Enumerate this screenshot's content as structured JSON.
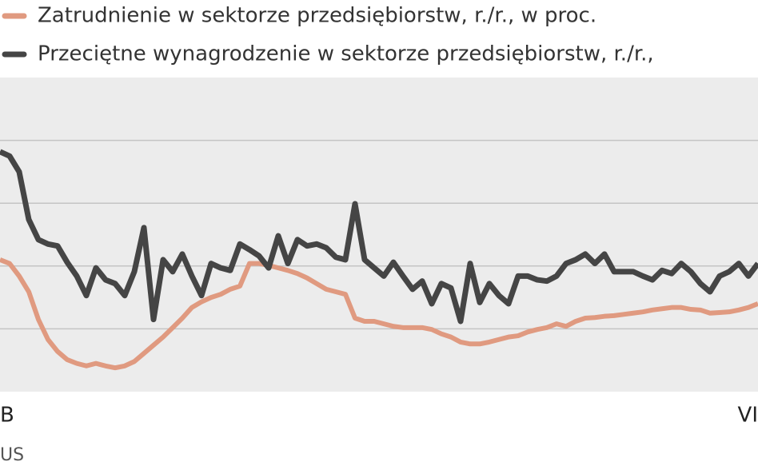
{
  "chart_data": {
    "type": "line",
    "x_labels": [
      "B",
      "VI"
    ],
    "source": "US",
    "xlim": [
      0,
      79
    ],
    "ylim": [
      0,
      5
    ],
    "grid_lines": [
      1,
      2,
      3,
      4
    ],
    "x": [
      0,
      1,
      2,
      3,
      4,
      5,
      6,
      7,
      8,
      9,
      10,
      11,
      12,
      13,
      14,
      15,
      16,
      17,
      18,
      19,
      20,
      21,
      22,
      23,
      24,
      25,
      26,
      27,
      28,
      29,
      30,
      31,
      32,
      33,
      34,
      35,
      36,
      37,
      38,
      39,
      40,
      41,
      42,
      43,
      44,
      45,
      46,
      47,
      48,
      49,
      50,
      51,
      52,
      53,
      54,
      55,
      56,
      57,
      58,
      59,
      60,
      61,
      62,
      63,
      64,
      65,
      66,
      67,
      68,
      69,
      70,
      71,
      72,
      73,
      74,
      75,
      76,
      77,
      78,
      79
    ],
    "series": [
      {
        "name": "Zatrudnienie w sektorze przedsiębiorstw, r./r., w proc.",
        "color": "#e09a80",
        "values": [
          2.1,
          2.04,
          1.84,
          1.59,
          1.15,
          0.83,
          0.64,
          0.51,
          0.45,
          0.41,
          0.45,
          0.41,
          0.38,
          0.41,
          0.48,
          0.61,
          0.74,
          0.87,
          1.02,
          1.17,
          1.34,
          1.43,
          1.5,
          1.55,
          1.63,
          1.68,
          2.04,
          2.04,
          2.01,
          1.97,
          1.93,
          1.88,
          1.81,
          1.72,
          1.63,
          1.59,
          1.55,
          1.17,
          1.12,
          1.12,
          1.08,
          1.04,
          1.02,
          1.02,
          1.02,
          0.99,
          0.92,
          0.87,
          0.79,
          0.76,
          0.76,
          0.79,
          0.83,
          0.87,
          0.89,
          0.95,
          0.99,
          1.02,
          1.08,
          1.04,
          1.12,
          1.17,
          1.18,
          1.2,
          1.21,
          1.23,
          1.25,
          1.27,
          1.3,
          1.32,
          1.34,
          1.34,
          1.31,
          1.3,
          1.25,
          1.26,
          1.27,
          1.3,
          1.34,
          1.4
        ]
      },
      {
        "name": "Przeciętne wynagrodzenie w sektorze przedsiębiorstw, r./r.,",
        "color": "#454545",
        "values": [
          3.82,
          3.75,
          3.5,
          2.74,
          2.42,
          2.35,
          2.32,
          2.06,
          1.84,
          1.53,
          1.97,
          1.78,
          1.72,
          1.53,
          1.91,
          2.61,
          1.15,
          2.1,
          1.91,
          2.19,
          1.84,
          1.53,
          2.04,
          1.97,
          1.93,
          2.35,
          2.26,
          2.16,
          1.97,
          2.48,
          2.04,
          2.42,
          2.32,
          2.35,
          2.29,
          2.14,
          2.1,
          2.99,
          2.1,
          1.97,
          1.84,
          2.06,
          1.84,
          1.63,
          1.76,
          1.4,
          1.72,
          1.65,
          1.12,
          2.04,
          1.42,
          1.72,
          1.53,
          1.4,
          1.84,
          1.84,
          1.78,
          1.76,
          1.84,
          2.04,
          2.1,
          2.19,
          2.04,
          2.19,
          1.91,
          1.91,
          1.91,
          1.84,
          1.78,
          1.93,
          1.88,
          2.04,
          1.91,
          1.72,
          1.59,
          1.84,
          1.91,
          2.04,
          1.84,
          2.04
        ]
      }
    ]
  }
}
